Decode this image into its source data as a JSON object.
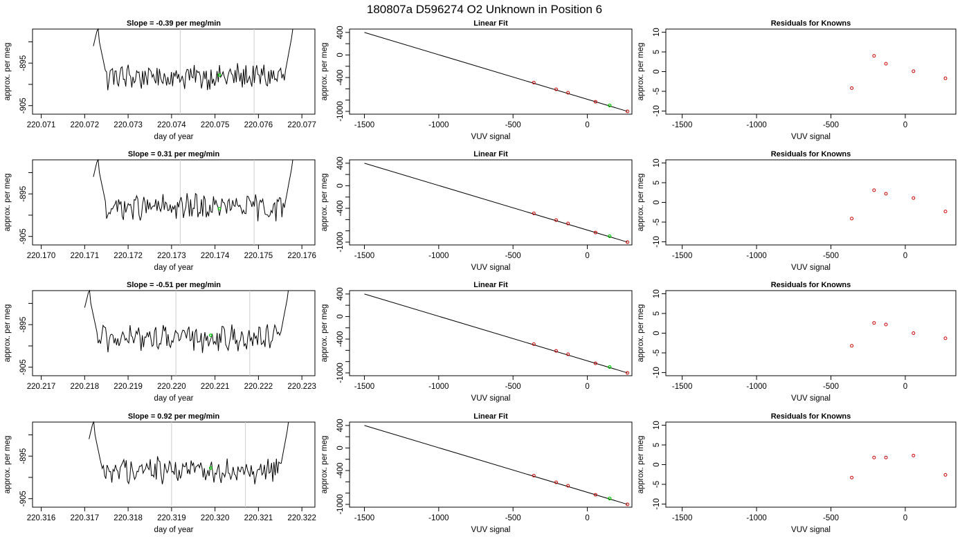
{
  "page_title": "180807a     D596274    O2 Unknown in Position  6",
  "panel_titles": {
    "fit": "Linear Fit",
    "resid": "Residuals for Knowns"
  },
  "axis_labels": {
    "time_x": "day of year",
    "time_y": "approx. per meg",
    "fit_x": "VUV signal",
    "fit_y": "approx. per meg",
    "resid_x": "VUV signal",
    "resid_y": "approx. per meg"
  },
  "colors": {
    "trace": "#000000",
    "marker_known": "#cc0000",
    "marker_unknown": "#00cc00",
    "vline": "#cccccc"
  },
  "chart_data": [
    {
      "type": "line",
      "row": 0,
      "title": "Slope =  -0.39  per meg/min",
      "xlabel": "day of year",
      "ylabel": "approx. per meg",
      "xlim": [
        220.0708,
        220.0773
      ],
      "ylim": [
        -907,
        -887
      ],
      "x_ticks": [
        "220.071",
        "220.072",
        "220.073",
        "220.074",
        "220.075",
        "220.076",
        "220.077"
      ],
      "y_ticks": [
        "-895",
        "-905"
      ],
      "trace_start": 220.0722,
      "trace_end": 220.0769,
      "vlines": [
        220.0742,
        220.0759
      ],
      "unknown_marker": {
        "x": 220.0751,
        "y": -897.8
      },
      "grid": false
    },
    {
      "type": "scatter",
      "row": 0,
      "title": "Linear Fit",
      "xlabel": "VUV signal",
      "ylabel": "approx. per meg",
      "xlim": [
        -1600,
        300
      ],
      "ylim": [
        -1050,
        460
      ],
      "x_ticks": [
        "-1500",
        "-1000",
        "-500",
        "0"
      ],
      "y_ticks": [
        "400",
        "0",
        "-400",
        "-1000"
      ],
      "fit_line": {
        "x": [
          -1500,
          270
        ],
        "y": [
          400,
          -1000
        ]
      },
      "knowns": {
        "x": [
          -360,
          -210,
          -130,
          55,
          270
        ],
        "y": [
          -490,
          -610,
          -670,
          -830,
          -1000
        ]
      },
      "unknown": {
        "x": 150,
        "y": -895
      },
      "grid": false
    },
    {
      "type": "scatter",
      "row": 0,
      "title": "Residuals for Knowns",
      "xlabel": "VUV signal",
      "ylabel": "approx. per meg",
      "xlim": [
        -1610,
        340
      ],
      "ylim": [
        -10.8,
        10.8
      ],
      "x_ticks": [
        "-1500",
        "-1000",
        "-500",
        "0"
      ],
      "y_ticks": [
        "10",
        "5",
        "0",
        "-5",
        "-10"
      ],
      "points": {
        "x": [
          -360,
          -210,
          -130,
          55,
          270
        ],
        "y": [
          -4.2,
          4.0,
          2.0,
          0.1,
          -1.7
        ]
      },
      "grid": false
    },
    {
      "type": "line",
      "row": 1,
      "title": "Slope =  0.31  per meg/min",
      "xlabel": "day of year",
      "ylabel": "approx. per meg",
      "xlim": [
        220.1698,
        220.1763
      ],
      "ylim": [
        -907,
        -887
      ],
      "x_ticks": [
        "220.170",
        "220.171",
        "220.172",
        "220.173",
        "220.174",
        "220.175",
        "220.176"
      ],
      "y_ticks": [
        "-895",
        "-905"
      ],
      "trace_start": 220.1712,
      "trace_end": 220.1759,
      "vlines": [
        220.1732,
        220.1749
      ],
      "unknown_marker": {
        "x": 220.1741,
        "y": -898.5
      },
      "grid": false
    },
    {
      "type": "scatter",
      "row": 1,
      "title": "Linear Fit",
      "xlabel": "VUV signal",
      "ylabel": "approx. per meg",
      "xlim": [
        -1600,
        300
      ],
      "ylim": [
        -1050,
        460
      ],
      "x_ticks": [
        "-1500",
        "-1000",
        "-500",
        "0"
      ],
      "y_ticks": [
        "400",
        "0",
        "-400",
        "-1000"
      ],
      "fit_line": {
        "x": [
          -1500,
          270
        ],
        "y": [
          400,
          -1000
        ]
      },
      "knowns": {
        "x": [
          -360,
          -210,
          -130,
          55,
          270
        ],
        "y": [
          -490,
          -610,
          -670,
          -830,
          -1000
        ]
      },
      "unknown": {
        "x": 150,
        "y": -895
      },
      "grid": false
    },
    {
      "type": "scatter",
      "row": 1,
      "title": "Residuals for Knowns",
      "xlabel": "VUV signal",
      "ylabel": "approx. per meg",
      "xlim": [
        -1610,
        340
      ],
      "ylim": [
        -10.8,
        10.8
      ],
      "x_ticks": [
        "-1500",
        "-1000",
        "-500",
        "0"
      ],
      "y_ticks": [
        "10",
        "5",
        "0",
        "-5",
        "-10"
      ],
      "points": {
        "x": [
          -360,
          -210,
          -130,
          55,
          270
        ],
        "y": [
          -4.1,
          3.1,
          2.2,
          1.1,
          -2.3
        ]
      },
      "grid": false
    },
    {
      "type": "line",
      "row": 2,
      "title": "Slope =  -0.51  per meg/min",
      "xlabel": "day of year",
      "ylabel": "approx. per meg",
      "xlim": [
        220.2168,
        220.2233
      ],
      "ylim": [
        -907,
        -887
      ],
      "x_ticks": [
        "220.217",
        "220.218",
        "220.219",
        "220.220",
        "220.221",
        "220.222",
        "220.223"
      ],
      "y_ticks": [
        "-895",
        "-905"
      ],
      "trace_start": 220.218,
      "trace_end": 220.2228,
      "vlines": [
        220.2201,
        220.2218
      ],
      "unknown_marker": {
        "x": 220.2209,
        "y": -897.5
      },
      "grid": false
    },
    {
      "type": "scatter",
      "row": 2,
      "title": "Linear Fit",
      "xlabel": "VUV signal",
      "ylabel": "approx. per meg",
      "xlim": [
        -1600,
        300
      ],
      "ylim": [
        -1050,
        460
      ],
      "x_ticks": [
        "-1500",
        "-1000",
        "-500",
        "0"
      ],
      "y_ticks": [
        "400",
        "0",
        "-400",
        "-1000"
      ],
      "fit_line": {
        "x": [
          -1500,
          270
        ],
        "y": [
          400,
          -1000
        ]
      },
      "knowns": {
        "x": [
          -360,
          -210,
          -130,
          55,
          270
        ],
        "y": [
          -490,
          -610,
          -670,
          -830,
          -1000
        ]
      },
      "unknown": {
        "x": 150,
        "y": -895
      },
      "grid": false
    },
    {
      "type": "scatter",
      "row": 2,
      "title": "Residuals for Knowns",
      "xlabel": "VUV signal",
      "ylabel": "approx. per meg",
      "xlim": [
        -1610,
        340
      ],
      "ylim": [
        -10.8,
        10.8
      ],
      "x_ticks": [
        "-1500",
        "-1000",
        "-500",
        "0"
      ],
      "y_ticks": [
        "10",
        "5",
        "0",
        "-5",
        "-10"
      ],
      "points": {
        "x": [
          -360,
          -210,
          -130,
          55,
          270
        ],
        "y": [
          -3.2,
          2.6,
          2.2,
          0.0,
          -1.3
        ]
      },
      "grid": false
    },
    {
      "type": "line",
      "row": 3,
      "title": "Slope =  0.92  per meg/min",
      "xlabel": "day of year",
      "ylabel": "approx. per meg",
      "xlim": [
        220.3158,
        220.3223
      ],
      "ylim": [
        -907,
        -887
      ],
      "x_ticks": [
        "220.316",
        "220.317",
        "220.318",
        "220.319",
        "220.320",
        "220.321",
        "220.322"
      ],
      "y_ticks": [
        "-895",
        "-905"
      ],
      "trace_start": 220.3171,
      "trace_end": 220.3218,
      "vlines": [
        220.319,
        220.3207
      ],
      "unknown_marker": {
        "x": 220.3199,
        "y": -897.8
      },
      "grid": false
    },
    {
      "type": "scatter",
      "row": 3,
      "title": "Linear Fit",
      "xlabel": "VUV signal",
      "ylabel": "approx. per meg",
      "xlim": [
        -1600,
        300
      ],
      "ylim": [
        -1050,
        460
      ],
      "x_ticks": [
        "-1500",
        "-1000",
        "-500",
        "0"
      ],
      "y_ticks": [
        "400",
        "0",
        "-400",
        "-1000"
      ],
      "fit_line": {
        "x": [
          -1500,
          270
        ],
        "y": [
          400,
          -1000
        ]
      },
      "knowns": {
        "x": [
          -360,
          -210,
          -130,
          55,
          270
        ],
        "y": [
          -490,
          -610,
          -670,
          -830,
          -1000
        ]
      },
      "unknown": {
        "x": 150,
        "y": -895
      },
      "grid": false
    },
    {
      "type": "scatter",
      "row": 3,
      "title": "Residuals for Knowns",
      "xlabel": "VUV signal",
      "ylabel": "approx. per meg",
      "xlim": [
        -1610,
        340
      ],
      "ylim": [
        -10.8,
        10.8
      ],
      "x_ticks": [
        "-1500",
        "-1000",
        "-500",
        "0"
      ],
      "y_ticks": [
        "10",
        "5",
        "0",
        "-5",
        "-10"
      ],
      "points": {
        "x": [
          -360,
          -210,
          -130,
          55,
          270
        ],
        "y": [
          -3.3,
          1.8,
          1.8,
          2.3,
          -2.6
        ]
      },
      "grid": false
    }
  ]
}
